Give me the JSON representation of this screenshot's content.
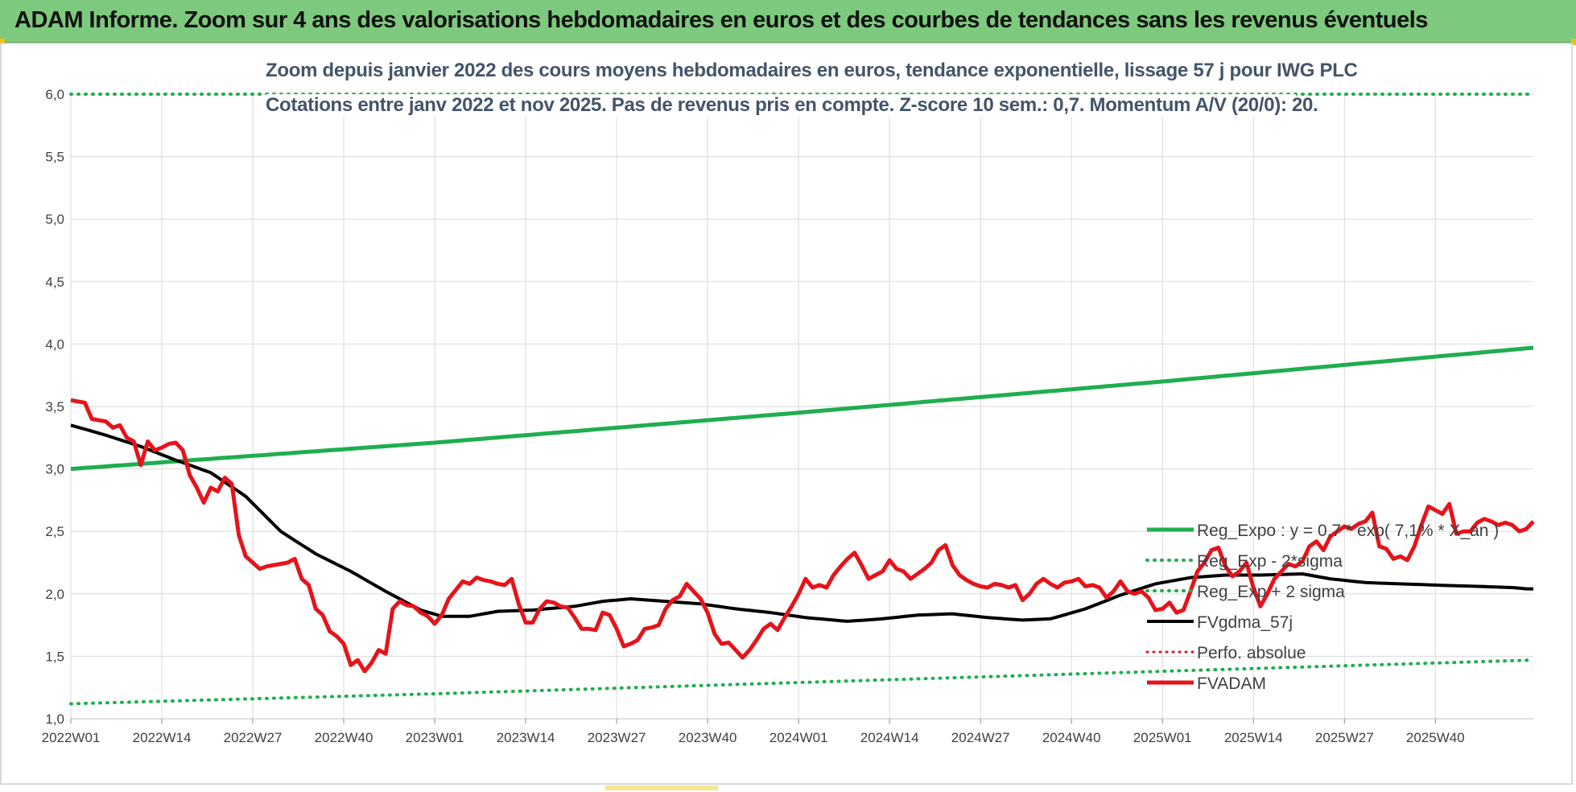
{
  "banner": {
    "title": "ADAM Informe. Zoom sur 4 ans des valorisations hebdomadaires en euros et des courbes de tendances sans les revenus éventuels"
  },
  "colors": {
    "banner_bg": "#7dc97d",
    "trend": "#1fae4f",
    "price": "#e5141b",
    "smooth": "#000000",
    "perf": "#e5141b",
    "grid": "#d9d9d9",
    "axis_text": "#404040"
  },
  "chart_data": {
    "type": "line",
    "title": "Zoom depuis janvier 2022 des cours moyens hebdomadaires en euros, tendance exponentielle, lissage 57 j pour IWG PLC",
    "subtitle": "Cotations entre janv 2022 et nov 2025. Pas de revenus pris en compte. Z-score 10 sem.: 0,7. Momentum A/V (20/0): 20.",
    "xlabel": "",
    "ylabel": "",
    "ylim": [
      1.0,
      6.0
    ],
    "yticks": [
      "1,0",
      "1,5",
      "2,0",
      "2,5",
      "3,0",
      "3,5",
      "4,0",
      "4,5",
      "5,0",
      "5,5",
      "6,0"
    ],
    "xticks": [
      "2022W01",
      "2022W14",
      "2022W27",
      "2022W40",
      "2023W01",
      "2023W14",
      "2023W27",
      "2023W40",
      "2024W01",
      "2024W14",
      "2024W27",
      "2024W40",
      "2025W01",
      "2025W14",
      "2025W27",
      "2025W40"
    ],
    "grid": true,
    "legend_position": "right",
    "n_weeks": 210,
    "series": [
      {
        "name": "Reg_Expo : y = 0,7 * exp( 7,1% * X_an )",
        "style": "solid-green-thick",
        "anchors": [
          [
            0,
            3.0
          ],
          [
            52,
            3.21
          ],
          [
            104,
            3.45
          ],
          [
            156,
            3.7
          ],
          [
            209,
            3.97
          ]
        ]
      },
      {
        "name": "Reg_Exp - 2*sigma",
        "style": "dotted-green",
        "anchors": [
          [
            0,
            1.12
          ],
          [
            52,
            1.2
          ],
          [
            104,
            1.29
          ],
          [
            156,
            1.38
          ],
          [
            209,
            1.47
          ]
        ]
      },
      {
        "name": "Reg_Exp + 2 sigma",
        "style": "dotted-green",
        "anchors": [
          [
            0,
            6.0
          ],
          [
            209,
            6.0
          ]
        ]
      },
      {
        "name": "FVgdma_57j",
        "style": "solid-black",
        "anchors": [
          [
            0,
            3.35
          ],
          [
            5,
            3.27
          ],
          [
            10,
            3.18
          ],
          [
            15,
            3.07
          ],
          [
            20,
            2.97
          ],
          [
            25,
            2.78
          ],
          [
            30,
            2.5
          ],
          [
            35,
            2.32
          ],
          [
            40,
            2.18
          ],
          [
            45,
            2.02
          ],
          [
            50,
            1.87
          ],
          [
            53,
            1.82
          ],
          [
            57,
            1.82
          ],
          [
            61,
            1.86
          ],
          [
            66,
            1.87
          ],
          [
            72,
            1.9
          ],
          [
            76,
            1.94
          ],
          [
            80,
            1.96
          ],
          [
            85,
            1.94
          ],
          [
            90,
            1.92
          ],
          [
            95,
            1.88
          ],
          [
            100,
            1.85
          ],
          [
            105,
            1.81
          ],
          [
            111,
            1.78
          ],
          [
            116,
            1.8
          ],
          [
            121,
            1.83
          ],
          [
            126,
            1.84
          ],
          [
            131,
            1.81
          ],
          [
            136,
            1.79
          ],
          [
            140,
            1.8
          ],
          [
            145,
            1.88
          ],
          [
            150,
            1.99
          ],
          [
            155,
            2.08
          ],
          [
            160,
            2.13
          ],
          [
            165,
            2.15
          ],
          [
            170,
            2.15
          ],
          [
            176,
            2.16
          ],
          [
            180,
            2.12
          ],
          [
            185,
            2.09
          ],
          [
            190,
            2.08
          ],
          [
            195,
            2.07
          ],
          [
            201,
            2.06
          ],
          [
            206,
            2.05
          ],
          [
            208,
            2.04
          ],
          [
            209,
            2.04
          ]
        ]
      },
      {
        "name": "Perfo. absolue",
        "style": "dotted-red",
        "anchors": []
      },
      {
        "name": "FVADAM",
        "style": "solid-red-thick",
        "anchors": [
          [
            0,
            3.55
          ],
          [
            2,
            3.53
          ],
          [
            3,
            3.4
          ],
          [
            5,
            3.38
          ],
          [
            6,
            3.33
          ],
          [
            7,
            3.35
          ],
          [
            8,
            3.25
          ],
          [
            9,
            3.22
          ],
          [
            10,
            3.03
          ],
          [
            11,
            3.22
          ],
          [
            12,
            3.15
          ],
          [
            13,
            3.17
          ],
          [
            14,
            3.2
          ],
          [
            15,
            3.21
          ],
          [
            16,
            3.15
          ],
          [
            17,
            2.95
          ],
          [
            18,
            2.85
          ],
          [
            19,
            2.73
          ],
          [
            20,
            2.85
          ],
          [
            21,
            2.82
          ],
          [
            22,
            2.93
          ],
          [
            23,
            2.88
          ],
          [
            24,
            2.47
          ],
          [
            25,
            2.3
          ],
          [
            26,
            2.25
          ],
          [
            27,
            2.2
          ],
          [
            28,
            2.22
          ],
          [
            29,
            2.23
          ],
          [
            31,
            2.25
          ],
          [
            32,
            2.28
          ],
          [
            33,
            2.12
          ],
          [
            34,
            2.07
          ],
          [
            35,
            1.88
          ],
          [
            36,
            1.83
          ],
          [
            37,
            1.7
          ],
          [
            38,
            1.66
          ],
          [
            39,
            1.6
          ],
          [
            40,
            1.43
          ],
          [
            41,
            1.47
          ],
          [
            42,
            1.38
          ],
          [
            43,
            1.45
          ],
          [
            44,
            1.55
          ],
          [
            45,
            1.52
          ],
          [
            46,
            1.88
          ],
          [
            47,
            1.94
          ],
          [
            48,
            1.91
          ],
          [
            49,
            1.9
          ],
          [
            50,
            1.85
          ],
          [
            51,
            1.82
          ],
          [
            52,
            1.76
          ],
          [
            53,
            1.83
          ],
          [
            54,
            1.96
          ],
          [
            55,
            2.03
          ],
          [
            56,
            2.1
          ],
          [
            57,
            2.08
          ],
          [
            58,
            2.13
          ],
          [
            59,
            2.11
          ],
          [
            60,
            2.1
          ],
          [
            61,
            2.08
          ],
          [
            62,
            2.07
          ],
          [
            63,
            2.12
          ],
          [
            64,
            1.92
          ],
          [
            65,
            1.77
          ],
          [
            66,
            1.77
          ],
          [
            67,
            1.88
          ],
          [
            68,
            1.94
          ],
          [
            69,
            1.93
          ],
          [
            70,
            1.9
          ],
          [
            71,
            1.89
          ],
          [
            72,
            1.81
          ],
          [
            73,
            1.72
          ],
          [
            74,
            1.72
          ],
          [
            75,
            1.71
          ],
          [
            76,
            1.85
          ],
          [
            77,
            1.83
          ],
          [
            78,
            1.72
          ],
          [
            79,
            1.58
          ],
          [
            80,
            1.6
          ],
          [
            81,
            1.63
          ],
          [
            82,
            1.72
          ],
          [
            83,
            1.73
          ],
          [
            84,
            1.75
          ],
          [
            85,
            1.88
          ],
          [
            86,
            1.95
          ],
          [
            87,
            1.98
          ],
          [
            88,
            2.08
          ],
          [
            89,
            2.02
          ],
          [
            90,
            1.96
          ],
          [
            91,
            1.85
          ],
          [
            92,
            1.68
          ],
          [
            93,
            1.6
          ],
          [
            94,
            1.61
          ],
          [
            95,
            1.55
          ],
          [
            96,
            1.49
          ],
          [
            97,
            1.55
          ],
          [
            98,
            1.63
          ],
          [
            99,
            1.72
          ],
          [
            100,
            1.76
          ],
          [
            101,
            1.71
          ],
          [
            102,
            1.81
          ],
          [
            103,
            1.9
          ],
          [
            104,
            2.0
          ],
          [
            105,
            2.12
          ],
          [
            106,
            2.05
          ],
          [
            107,
            2.07
          ],
          [
            108,
            2.05
          ],
          [
            109,
            2.15
          ],
          [
            110,
            2.22
          ],
          [
            111,
            2.28
          ],
          [
            112,
            2.33
          ],
          [
            113,
            2.23
          ],
          [
            114,
            2.12
          ],
          [
            115,
            2.15
          ],
          [
            116,
            2.18
          ],
          [
            117,
            2.27
          ],
          [
            118,
            2.2
          ],
          [
            119,
            2.18
          ],
          [
            120,
            2.12
          ],
          [
            121,
            2.16
          ],
          [
            122,
            2.2
          ],
          [
            123,
            2.25
          ],
          [
            124,
            2.35
          ],
          [
            125,
            2.39
          ],
          [
            126,
            2.23
          ],
          [
            127,
            2.15
          ],
          [
            128,
            2.11
          ],
          [
            129,
            2.08
          ],
          [
            130,
            2.06
          ],
          [
            131,
            2.05
          ],
          [
            132,
            2.08
          ],
          [
            133,
            2.07
          ],
          [
            134,
            2.05
          ],
          [
            135,
            2.07
          ],
          [
            136,
            1.95
          ],
          [
            137,
            2.0
          ],
          [
            138,
            2.08
          ],
          [
            139,
            2.12
          ],
          [
            140,
            2.08
          ],
          [
            141,
            2.05
          ],
          [
            142,
            2.09
          ],
          [
            143,
            2.1
          ],
          [
            144,
            2.12
          ],
          [
            145,
            2.06
          ],
          [
            146,
            2.07
          ],
          [
            147,
            2.05
          ],
          [
            148,
            1.97
          ],
          [
            149,
            2.02
          ],
          [
            150,
            2.1
          ],
          [
            151,
            2.02
          ],
          [
            152,
            2.0
          ],
          [
            153,
            2.02
          ],
          [
            154,
            1.97
          ],
          [
            155,
            1.87
          ],
          [
            156,
            1.88
          ],
          [
            157,
            1.93
          ],
          [
            158,
            1.85
          ],
          [
            159,
            1.87
          ],
          [
            160,
            2.02
          ],
          [
            161,
            2.18
          ],
          [
            162,
            2.25
          ],
          [
            163,
            2.35
          ],
          [
            164,
            2.37
          ],
          [
            165,
            2.22
          ],
          [
            166,
            2.14
          ],
          [
            167,
            2.18
          ],
          [
            168,
            2.25
          ],
          [
            169,
            2.05
          ],
          [
            170,
            1.9
          ],
          [
            171,
            2.0
          ],
          [
            172,
            2.12
          ],
          [
            173,
            2.18
          ],
          [
            174,
            2.24
          ],
          [
            175,
            2.22
          ],
          [
            176,
            2.26
          ],
          [
            177,
            2.38
          ],
          [
            178,
            2.42
          ],
          [
            179,
            2.35
          ],
          [
            180,
            2.46
          ],
          [
            181,
            2.5
          ],
          [
            182,
            2.54
          ],
          [
            183,
            2.52
          ],
          [
            184,
            2.56
          ],
          [
            185,
            2.58
          ],
          [
            186,
            2.65
          ],
          [
            187,
            2.38
          ],
          [
            188,
            2.36
          ],
          [
            189,
            2.28
          ],
          [
            190,
            2.3
          ],
          [
            191,
            2.27
          ],
          [
            192,
            2.38
          ],
          [
            193,
            2.55
          ],
          [
            194,
            2.7
          ],
          [
            195,
            2.67
          ],
          [
            196,
            2.64
          ],
          [
            197,
            2.72
          ],
          [
            198,
            2.48
          ],
          [
            199,
            2.5
          ],
          [
            200,
            2.5
          ],
          [
            201,
            2.57
          ],
          [
            202,
            2.6
          ],
          [
            203,
            2.58
          ],
          [
            204,
            2.55
          ],
          [
            205,
            2.57
          ],
          [
            206,
            2.55
          ],
          [
            207,
            2.5
          ],
          [
            208,
            2.52
          ],
          [
            209,
            2.58
          ]
        ]
      }
    ]
  }
}
